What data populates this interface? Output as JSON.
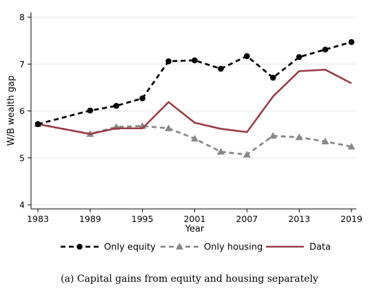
{
  "chart_data": {
    "type": "line",
    "xlabel": "Year",
    "ylabel": "W/B wealth gap",
    "xlim": [
      1983,
      2019
    ],
    "ylim": [
      4,
      8
    ],
    "x_ticks": [
      1983,
      1989,
      1995,
      2001,
      2007,
      2013,
      2019
    ],
    "y_ticks": [
      4,
      5,
      6,
      7,
      8
    ],
    "grid": "horizontal",
    "legend_position": "bottom",
    "series": [
      {
        "name": "Only equity",
        "color": "#000000",
        "style": "dashed",
        "marker": "circle",
        "x": [
          1983,
          1989,
          1992,
          1995,
          1998,
          2001,
          2004,
          2007,
          2010,
          2013,
          2016,
          2019
        ],
        "y": [
          5.72,
          6.01,
          6.11,
          6.27,
          7.06,
          7.08,
          6.9,
          7.17,
          6.71,
          7.15,
          7.31,
          7.47
        ]
      },
      {
        "name": "Only housing",
        "color": "#888888",
        "style": "dashed",
        "marker": "triangle",
        "x": [
          1983,
          1989,
          1992,
          1995,
          1998,
          2001,
          2004,
          2007,
          2010,
          2013,
          2016,
          2019
        ],
        "y": [
          5.72,
          5.51,
          5.66,
          5.68,
          5.63,
          5.41,
          5.13,
          5.07,
          5.47,
          5.44,
          5.35,
          5.24
        ]
      },
      {
        "name": "Data",
        "color": "#9b3a45",
        "style": "solid",
        "marker": "none",
        "x": [
          1983,
          1989,
          1992,
          1995,
          1998,
          2001,
          2004,
          2007,
          2010,
          2013,
          2016,
          2019
        ],
        "y": [
          5.72,
          5.51,
          5.63,
          5.63,
          6.19,
          5.75,
          5.62,
          5.55,
          6.31,
          6.85,
          6.88,
          6.59
        ]
      }
    ]
  },
  "caption": "(a) Capital gains from equity and housing separately"
}
